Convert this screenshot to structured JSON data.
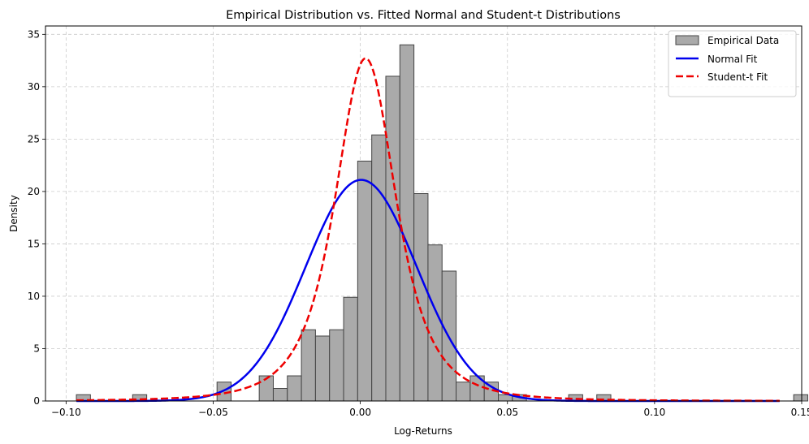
{
  "chart_data": {
    "type": "bar",
    "title": "Empirical Distribution vs. Fitted Normal and Student-t Distributions",
    "xlabel": "Log-Returns",
    "ylabel": "Density",
    "xlim": [
      -0.107,
      0.15
    ],
    "ylim": [
      0,
      35.8
    ],
    "grid": true,
    "legend_position": "top-right",
    "x_ticks": [
      -0.1,
      -0.05,
      0.0,
      0.05,
      0.1,
      0.15
    ],
    "x_tick_labels": [
      "−0.10",
      "−0.05",
      "0.00",
      "0.05",
      "0.10",
      "0.15"
    ],
    "y_ticks": [
      0,
      5,
      10,
      15,
      20,
      25,
      30,
      35
    ],
    "y_tick_labels": [
      "0",
      "5",
      "10",
      "15",
      "20",
      "25",
      "30",
      "35"
    ],
    "histogram": {
      "name": "Empirical Data",
      "color": "#aaaaaa",
      "edge_color": "#444444",
      "bin_start": -0.0965,
      "bin_width": 0.00478,
      "densities": [
        0.6,
        0,
        0,
        0,
        0.6,
        0,
        0,
        0,
        0,
        0,
        1.8,
        0,
        0,
        2.4,
        1.2,
        2.4,
        6.8,
        6.2,
        6.8,
        9.9,
        22.9,
        25.4,
        31.0,
        34.0,
        19.8,
        14.9,
        12.4,
        1.8,
        2.4,
        1.8,
        0.6,
        0.6,
        0,
        0,
        0,
        0.6,
        0,
        0.6,
        0,
        0,
        0,
        0,
        0,
        0,
        0,
        0,
        0,
        0,
        0,
        0,
        0,
        0.6
      ]
    },
    "series": [
      {
        "name": "Normal Fit",
        "color": "#0000ee",
        "dash": "solid",
        "distribution": "normal",
        "mean": 0.0003,
        "std": 0.0189
      },
      {
        "name": "Student-t Fit",
        "color": "#ee0000",
        "dash": "dashed",
        "distribution": "student-t",
        "df": 2.6,
        "loc": 0.0018,
        "scale": 0.0111
      }
    ],
    "x_range_plotted": [
      -0.0965,
      0.1425
    ]
  }
}
